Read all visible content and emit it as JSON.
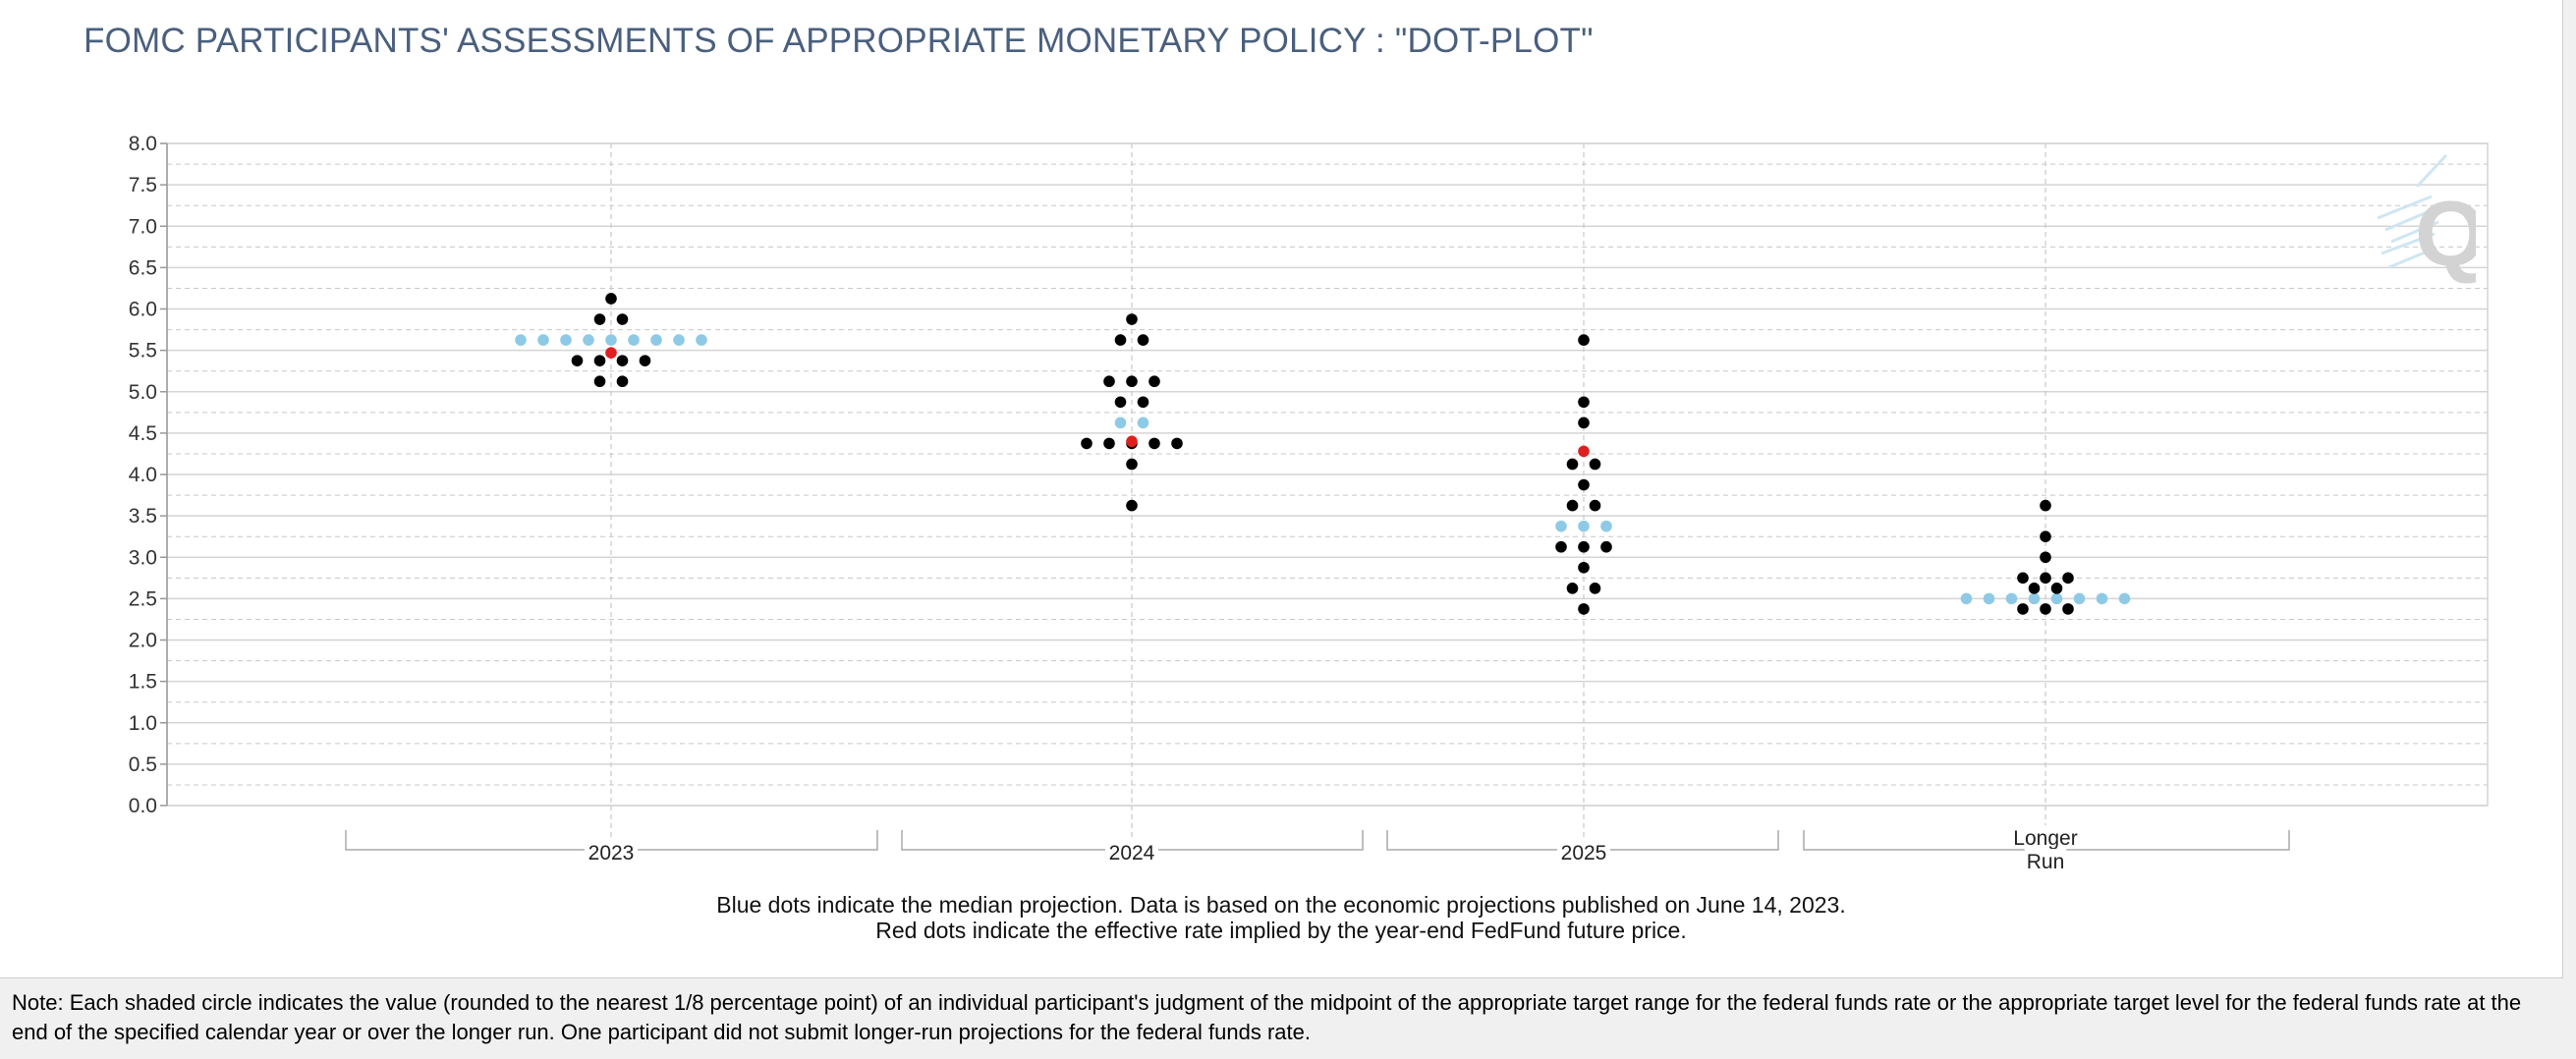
{
  "chart_data": {
    "type": "scatter",
    "title": "FOMC PARTICIPANTS' ASSESSMENTS OF APPROPRIATE MONETARY POLICY : \"DOT-PLOT\"",
    "xlabel": "",
    "ylabel": "",
    "ylim": [
      0,
      8
    ],
    "y_ticks": [
      "0.0",
      "0.5",
      "1.0",
      "1.5",
      "2.0",
      "2.5",
      "3.0",
      "3.5",
      "4.0",
      "4.5",
      "5.0",
      "5.5",
      "6.0",
      "6.5",
      "7.0",
      "7.5",
      "8.0"
    ],
    "grid": true,
    "categories": [
      {
        "label_lines": [
          "2023"
        ]
      },
      {
        "label_lines": [
          "2024"
        ]
      },
      {
        "label_lines": [
          "2025"
        ]
      },
      {
        "label_lines": [
          "Longer",
          "Run"
        ]
      }
    ],
    "participants": [
      {
        "category": "2023",
        "values": [
          {
            "rate": 6.125,
            "count": 1
          },
          {
            "rate": 5.875,
            "count": 2
          },
          {
            "rate": 5.375,
            "count": 4
          },
          {
            "rate": 5.125,
            "count": 2
          }
        ]
      },
      {
        "category": "2024",
        "values": [
          {
            "rate": 5.875,
            "count": 1
          },
          {
            "rate": 5.625,
            "count": 2
          },
          {
            "rate": 5.125,
            "count": 3
          },
          {
            "rate": 4.875,
            "count": 2
          },
          {
            "rate": 4.375,
            "count": 5
          },
          {
            "rate": 4.125,
            "count": 1
          },
          {
            "rate": 3.625,
            "count": 1
          }
        ]
      },
      {
        "category": "2025",
        "values": [
          {
            "rate": 5.625,
            "count": 1
          },
          {
            "rate": 4.875,
            "count": 1
          },
          {
            "rate": 4.625,
            "count": 1
          },
          {
            "rate": 4.125,
            "count": 2
          },
          {
            "rate": 3.875,
            "count": 1
          },
          {
            "rate": 3.625,
            "count": 2
          },
          {
            "rate": 3.125,
            "count": 3
          },
          {
            "rate": 2.875,
            "count": 1
          },
          {
            "rate": 2.625,
            "count": 2
          },
          {
            "rate": 2.375,
            "count": 1
          }
        ]
      },
      {
        "category": "Longer Run",
        "values": [
          {
            "rate": 3.625,
            "count": 1
          },
          {
            "rate": 3.25,
            "count": 1
          },
          {
            "rate": 3.0,
            "count": 1
          },
          {
            "rate": 2.75,
            "count": 3
          },
          {
            "rate": 2.625,
            "count": 2
          },
          {
            "rate": 2.375,
            "count": 3
          }
        ]
      }
    ],
    "median_projection": [
      {
        "category": "2023",
        "rate": 5.625,
        "dots": 9
      },
      {
        "category": "2024",
        "rate": 4.625,
        "dots": 2
      },
      {
        "category": "2025",
        "rate": 3.375,
        "dots": 3
      },
      {
        "category": "Longer Run",
        "rate": 2.5,
        "dots": 8
      }
    ],
    "futures_implied": [
      {
        "category": "2023",
        "rate": 5.47
      },
      {
        "category": "2024",
        "rate": 4.4
      },
      {
        "category": "2025",
        "rate": 4.28
      }
    ],
    "colors": {
      "participant": "#000000",
      "median": "#8ecae6",
      "futures": "#e02020",
      "grid_major": "#d4d4d4",
      "grid_minor": "#c8c8c8",
      "axis": "#999999",
      "title": "#4a5f7e"
    }
  },
  "caption": {
    "line1": "Blue dots indicate the median projection. Data is based on the economic projections published on June 14, 2023.",
    "line2": "Red dots indicate the effective rate implied by the year-end FedFund future price."
  },
  "note": "Note: Each shaded circle indicates the value (rounded to the nearest 1/8 percentage point) of an individual participant's judgment of the midpoint of the appropriate target range for the federal funds rate or the appropriate target level for the federal funds rate at the end of the specified calendar year or over the longer run. One participant did not submit longer-run projections for the federal funds rate.",
  "watermark": {
    "icon": "q-logo-icon",
    "letter": "Q"
  }
}
